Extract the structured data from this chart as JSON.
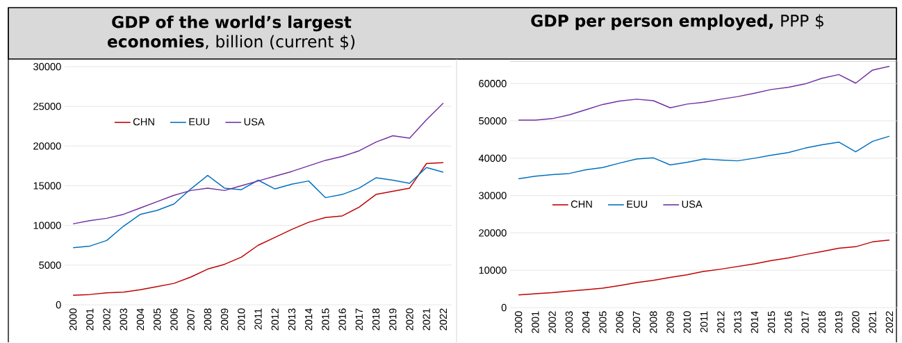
{
  "chart_data": [
    {
      "type": "line",
      "title": "**GDP of the world’s largest economies**, billion (current $)",
      "categories": [
        "2000",
        "2001",
        "2002",
        "2003",
        "2004",
        "2005",
        "2006",
        "2007",
        "2008",
        "2009",
        "2010",
        "2011",
        "2012",
        "2013",
        "2014",
        "2015",
        "2016",
        "2017",
        "2018",
        "2019",
        "2020",
        "2021",
        "2022"
      ],
      "series": [
        {
          "name": "CHN",
          "color": "#c00000",
          "values": [
            1200,
            1300,
            1500,
            1600,
            1900,
            2300,
            2700,
            3500,
            4500,
            5100,
            6000,
            7500,
            8500,
            9500,
            10400,
            11000,
            11200,
            12300,
            13900,
            14300,
            14700,
            17800,
            17900
          ]
        },
        {
          "name": "EUU",
          "color": "#0070c0",
          "values": [
            7200,
            7400,
            8100,
            9900,
            11400,
            11900,
            12700,
            14600,
            16300,
            14700,
            14500,
            15700,
            14600,
            15200,
            15600,
            13500,
            13900,
            14700,
            16000,
            15700,
            15300,
            17300,
            16700
          ]
        },
        {
          "name": "USA",
          "color": "#7030a0",
          "values": [
            10200,
            10600,
            10900,
            11400,
            12200,
            13000,
            13800,
            14400,
            14700,
            14400,
            15000,
            15600,
            16200,
            16800,
            17500,
            18200,
            18700,
            19400,
            20500,
            21300,
            21000,
            23300,
            25400
          ]
        }
      ],
      "ylim": [
        0,
        30000
      ],
      "yticks": [
        0,
        5000,
        10000,
        15000,
        20000,
        25000,
        30000
      ],
      "grid": "y",
      "legend": "top left"
    },
    {
      "type": "line",
      "title": "**GDP per person employed,** PPP $",
      "categories": [
        "2000",
        "2001",
        "2002",
        "2003",
        "2004",
        "2005",
        "2006",
        "2007",
        "2008",
        "2009",
        "2010",
        "2011",
        "2012",
        "2013",
        "2014",
        "2015",
        "2016",
        "2017",
        "2018",
        "2019",
        "2020",
        "2021",
        "2022"
      ],
      "series": [
        {
          "name": "CHN",
          "color": "#c00000",
          "values": [
            3400,
            3700,
            4000,
            4400,
            4800,
            5200,
            5900,
            6700,
            7300,
            8100,
            8800,
            9700,
            10300,
            11000,
            11700,
            12600,
            13300,
            14200,
            15000,
            15900,
            16300,
            17600,
            18100
          ]
        },
        {
          "name": "EUU",
          "color": "#0070c0",
          "values": [
            34500,
            35200,
            35600,
            35900,
            36900,
            37500,
            38700,
            39800,
            40100,
            38200,
            38900,
            39800,
            39500,
            39300,
            40000,
            40800,
            41500,
            42700,
            43600,
            44300,
            41700,
            44500,
            45900
          ]
        },
        {
          "name": "USA",
          "color": "#7030a0",
          "values": [
            50200,
            50200,
            50600,
            51600,
            53000,
            54400,
            55300,
            55800,
            55400,
            53500,
            54500,
            55000,
            55800,
            56500,
            57400,
            58400,
            59000,
            59900,
            61400,
            62400,
            60100,
            63600,
            64600
          ]
        }
      ],
      "ylim": [
        0,
        66000
      ],
      "yticks": [
        0,
        10000,
        20000,
        30000,
        40000,
        50000,
        60000
      ],
      "grid": "y",
      "legend": "left"
    }
  ]
}
